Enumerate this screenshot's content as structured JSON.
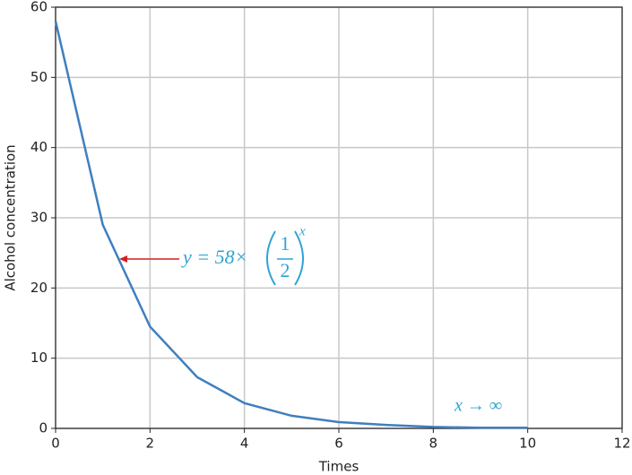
{
  "chart_data": {
    "type": "line",
    "x_label": "Times",
    "y_label": "Alcohol concentration",
    "x": [
      0,
      1,
      2,
      3,
      4,
      5,
      6,
      7,
      8,
      9,
      10
    ],
    "series": [
      {
        "name": "concentration",
        "color": "#3f7fbf",
        "values": [
          58,
          29,
          14.5,
          7.3,
          3.6,
          1.8,
          0.9,
          0.5,
          0.2,
          0.1,
          0.1
        ]
      }
    ],
    "xlim": [
      0,
      12
    ],
    "ylim": [
      0,
      60
    ],
    "xticks": [
      0,
      2,
      4,
      6,
      8,
      10,
      12
    ],
    "yticks": [
      0,
      10,
      20,
      30,
      40,
      50,
      60
    ],
    "grid": true,
    "formula": {
      "lhs": "y = 58×",
      "numerator": "1",
      "denominator": "2",
      "exponent": "x"
    },
    "limit_note": "x → ∞"
  }
}
